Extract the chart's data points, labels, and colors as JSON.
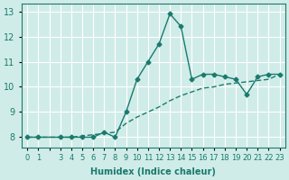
{
  "xlabel": "Humidex (Indice chaleur)",
  "ylabel": "",
  "bg_color": "#d0ece8",
  "grid_color": "#ffffff",
  "line_color": "#1a7a6e",
  "xlim": [
    -0.5,
    23.5
  ],
  "ylim": [
    7.6,
    13.3
  ],
  "yticks": [
    8,
    9,
    10,
    11,
    12,
    13
  ],
  "xtick_positions": [
    0,
    1,
    2,
    3,
    4,
    5,
    6,
    7,
    8,
    9,
    10,
    11,
    12,
    13,
    14,
    15,
    16,
    17,
    18,
    19,
    20,
    21,
    22,
    23
  ],
  "xtick_labels": [
    "0",
    "1",
    "",
    "3",
    "4",
    "5",
    "6",
    "7",
    "8",
    "9",
    "10",
    "11",
    "12",
    "13",
    "14",
    "15",
    "16",
    "17",
    "18",
    "19",
    "20",
    "21",
    "22",
    "23"
  ],
  "series1_x": [
    0,
    1,
    3,
    4,
    5,
    6,
    7,
    8,
    9,
    10,
    11,
    12,
    13,
    14,
    15,
    16,
    17,
    18,
    19,
    20,
    21,
    22,
    23
  ],
  "series1_y": [
    8.0,
    8.0,
    8.0,
    8.0,
    8.0,
    8.0,
    8.2,
    8.0,
    9.0,
    10.3,
    11.0,
    11.7,
    12.9,
    12.4,
    10.3,
    10.5,
    10.5,
    10.4,
    10.3,
    9.7,
    10.4,
    10.5,
    10.5
  ],
  "series2_x": [
    0,
    1,
    3,
    4,
    5,
    6,
    7,
    8,
    9,
    10,
    11,
    12,
    13,
    14,
    15,
    16,
    17,
    18,
    19,
    20,
    21,
    22,
    23
  ],
  "series2_y": [
    8.0,
    8.0,
    8.0,
    8.0,
    8.05,
    8.1,
    8.15,
    8.2,
    8.55,
    8.8,
    9.0,
    9.2,
    9.45,
    9.65,
    9.8,
    9.95,
    10.0,
    10.1,
    10.15,
    10.2,
    10.25,
    10.3,
    10.5
  ]
}
